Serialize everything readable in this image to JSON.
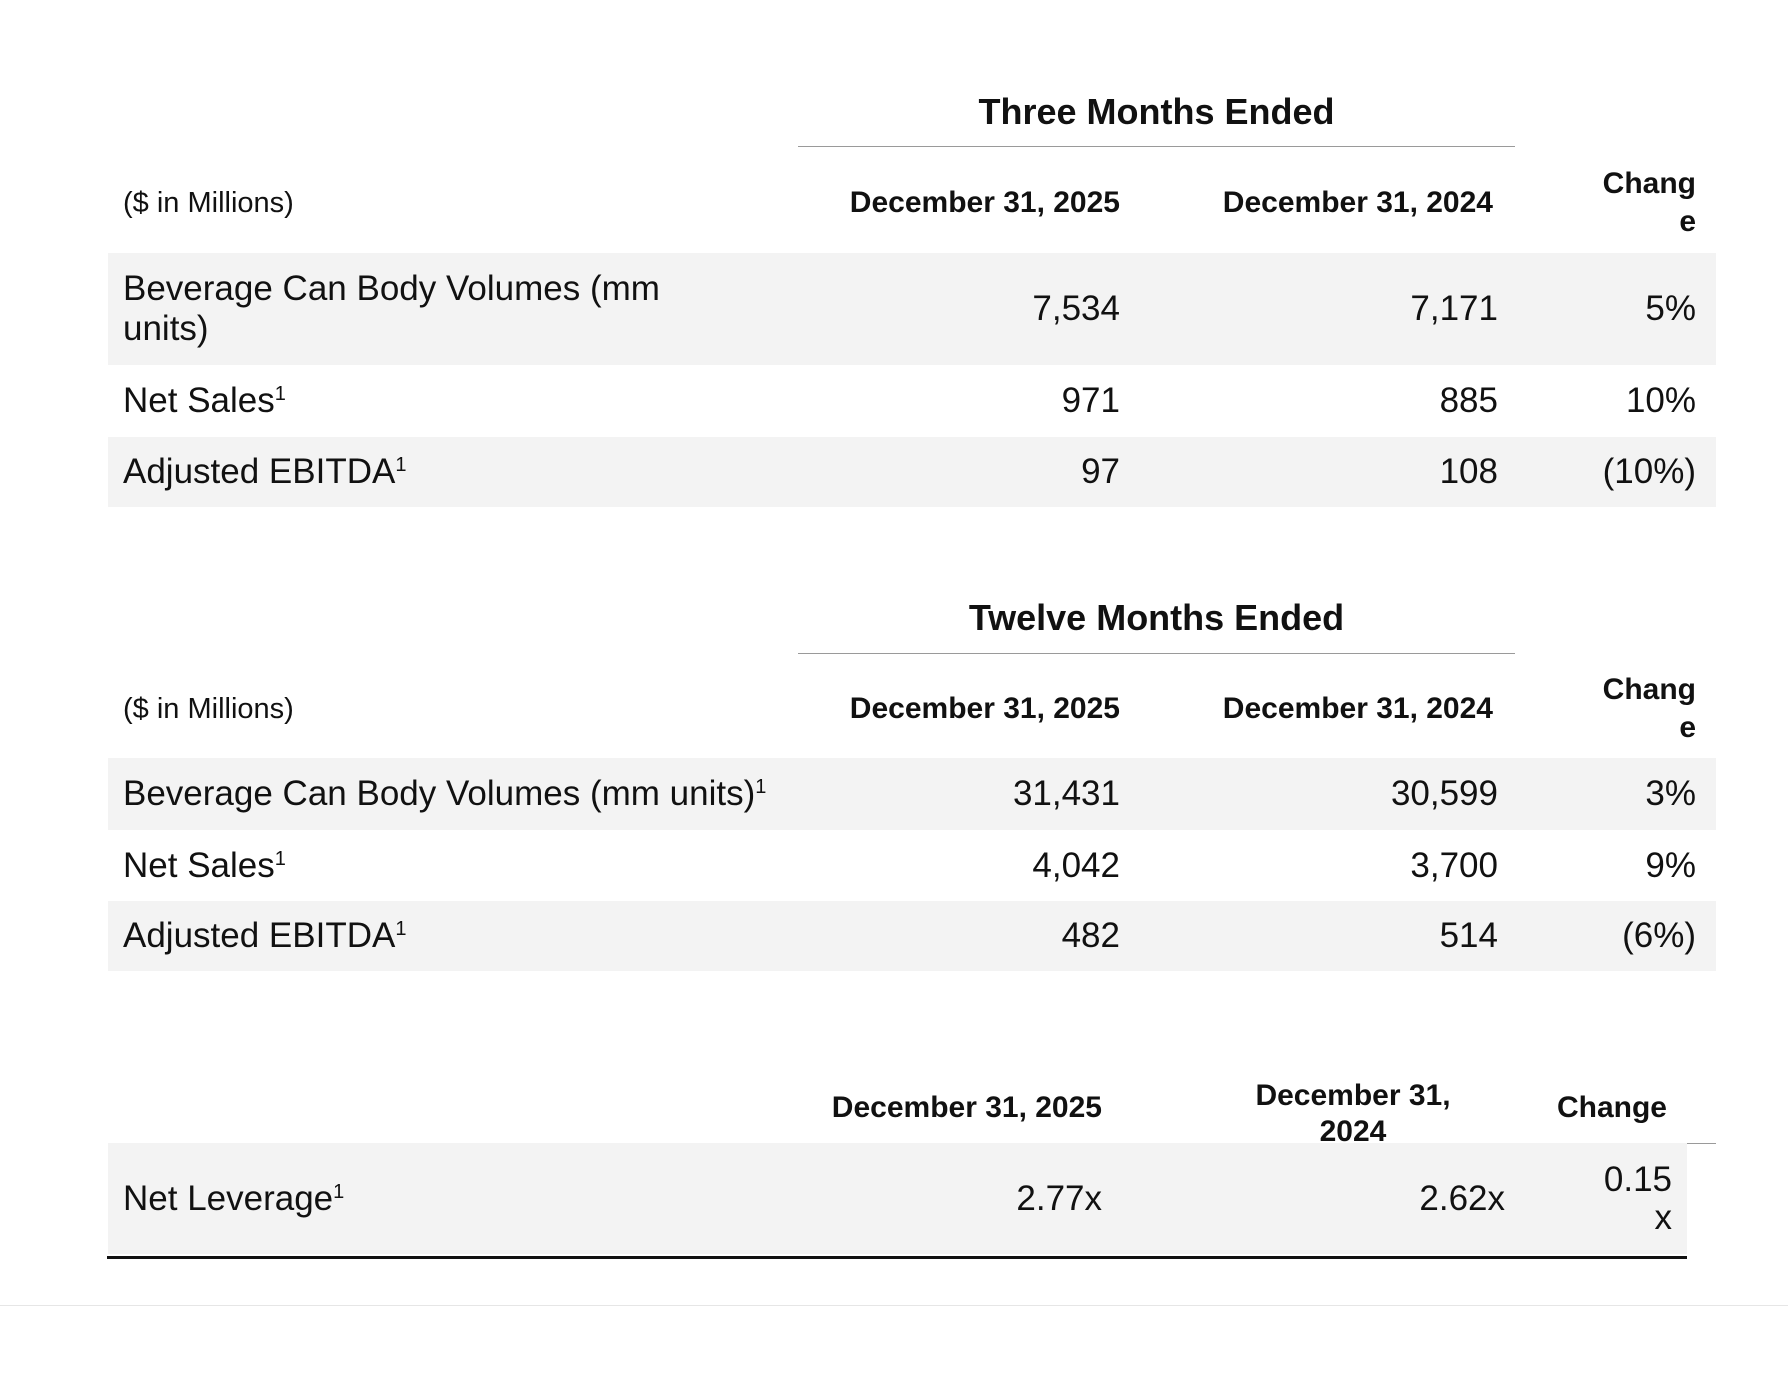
{
  "tables": [
    {
      "title": "Three Months Ended",
      "header": {
        "label": "($ in Millions)",
        "columns": [
          "December 31, 2025",
          "December 31, 2024",
          "Change"
        ]
      },
      "rows": [
        {
          "label": "Beverage Can Body Volumes (mm units)",
          "values": [
            "7,534",
            "7,171",
            "5%"
          ]
        },
        {
          "label": "Net Sales",
          "note": "1",
          "values": [
            "971",
            "885",
            "10%"
          ]
        },
        {
          "label": "Adjusted EBITDA",
          "note": "1",
          "values": [
            "97",
            "108",
            "(10%)"
          ]
        }
      ]
    },
    {
      "title": "Twelve Months Ended",
      "header": {
        "label": "($ in Millions)",
        "columns": [
          "December 31, 2025",
          "December 31, 2024",
          "Change"
        ]
      },
      "rows": [
        {
          "label": "Beverage Can Body Volumes (mm units)",
          "note": "1",
          "values": [
            "31,431",
            "30,599",
            "3%"
          ]
        },
        {
          "label": "Net Sales",
          "note": "1",
          "values": [
            "4,042",
            "3,700",
            "9%"
          ]
        },
        {
          "label": "Adjusted EBITDA",
          "note": "1",
          "values": [
            "482",
            "514",
            "(6%)"
          ]
        }
      ]
    },
    {
      "header": {
        "columns": [
          "December 31, 2025",
          "December 31, 2024",
          "Change"
        ]
      },
      "rows": [
        {
          "label": "Net Leverage",
          "note": "1",
          "values": [
            "2.77x",
            "2.62x",
            "0.15x"
          ]
        }
      ]
    }
  ]
}
